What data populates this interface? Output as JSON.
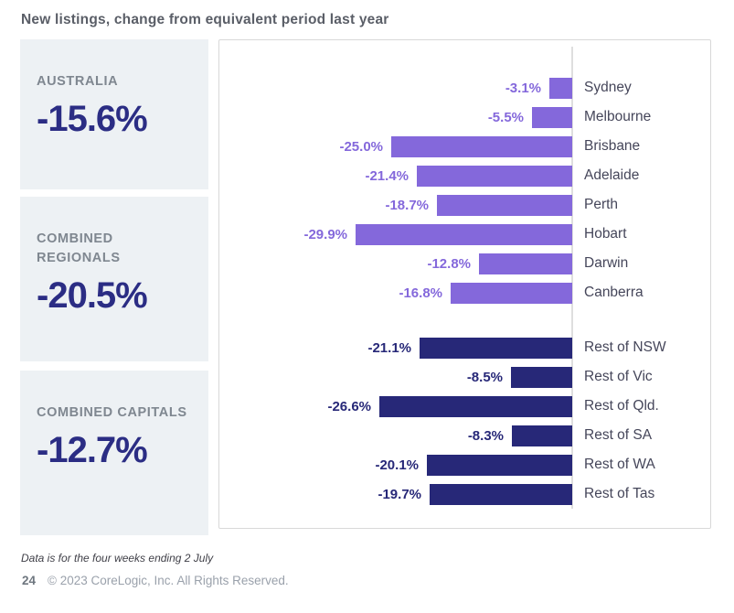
{
  "header": {
    "title": "New listings, change from equivalent period last year"
  },
  "summary": {
    "boxes": [
      {
        "label": "AUSTRALIA",
        "value": "-15.6%"
      },
      {
        "label": "COMBINED REGIONALS",
        "value": "-20.5%"
      },
      {
        "label": "COMBINED CAPITALS",
        "value": "-12.7%"
      }
    ]
  },
  "chart_data": {
    "type": "bar",
    "orientation": "horizontal",
    "title": "New listings, change from equivalent period last year",
    "unit": "percent",
    "xlim": [
      -30,
      0
    ],
    "grid": false,
    "legend": "none",
    "axis_note": "bars extend left from zero baseline; category labels right of baseline",
    "groups": [
      {
        "name": "capital-cities",
        "color": "#8468db",
        "rows": [
          {
            "category": "Sydney",
            "value": -3.1,
            "display": "-3.1%"
          },
          {
            "category": "Melbourne",
            "value": -5.5,
            "display": "-5.5%"
          },
          {
            "category": "Brisbane",
            "value": -25.0,
            "display": "-25.0%"
          },
          {
            "category": "Adelaide",
            "value": -21.4,
            "display": "-21.4%"
          },
          {
            "category": "Perth",
            "value": -18.7,
            "display": "-18.7%"
          },
          {
            "category": "Hobart",
            "value": -29.9,
            "display": "-29.9%"
          },
          {
            "category": "Darwin",
            "value": -12.8,
            "display": "-12.8%"
          },
          {
            "category": "Canberra",
            "value": -16.8,
            "display": "-16.8%"
          }
        ]
      },
      {
        "name": "rest-of-state-regions",
        "color": "#272878",
        "rows": [
          {
            "category": "Rest of NSW",
            "value": -21.1,
            "display": "-21.1%"
          },
          {
            "category": "Rest of Vic",
            "value": -8.5,
            "display": "-8.5%"
          },
          {
            "category": "Rest of Qld.",
            "value": -26.6,
            "display": "-26.6%"
          },
          {
            "category": "Rest of SA",
            "value": -8.3,
            "display": "-8.3%"
          },
          {
            "category": "Rest of WA",
            "value": -20.1,
            "display": "-20.1%"
          },
          {
            "category": "Rest of Tas",
            "value": -19.7,
            "display": "-19.7%"
          }
        ]
      }
    ]
  },
  "footer": {
    "footnote": "Data is for the four weeks ending 2 July",
    "page_number": "24",
    "copyright": "© 2023 CoreLogic, Inc. All Rights Reserved."
  },
  "colors": {
    "capitals_bar": "#8468db",
    "regionals_bar": "#272878",
    "summary_value": "#2b2d84",
    "box_background": "#edf1f4",
    "axis_line": "#dedede"
  }
}
